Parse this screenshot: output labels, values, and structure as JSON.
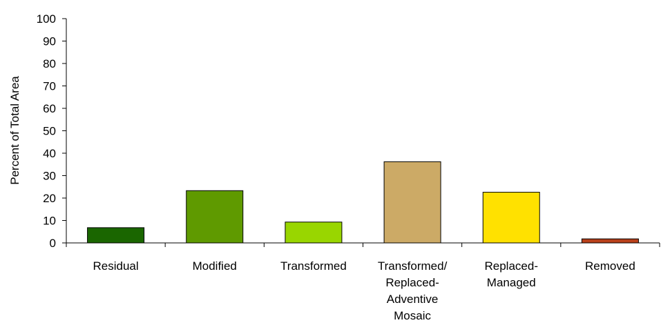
{
  "chart_data": {
    "type": "bar",
    "title": "",
    "xlabel": "",
    "ylabel": "Percent of Total Area",
    "ylim": [
      0,
      100
    ],
    "yticks": [
      0,
      10,
      20,
      30,
      40,
      50,
      60,
      70,
      80,
      90,
      100
    ],
    "grid": false,
    "legend": "none",
    "categories": [
      [
        "Residual"
      ],
      [
        "Modified"
      ],
      [
        "Transformed"
      ],
      [
        "Transformed/",
        "Replaced-",
        "Adventive",
        "Mosaic"
      ],
      [
        "Replaced-",
        "Managed"
      ],
      [
        "Removed"
      ]
    ],
    "values": [
      6.8,
      23.3,
      9.3,
      36.2,
      22.6,
      1.8
    ],
    "colors": [
      "#1a6600",
      "#5f9a00",
      "#99d600",
      "#ccaa66",
      "#ffe100",
      "#b8401a"
    ]
  }
}
